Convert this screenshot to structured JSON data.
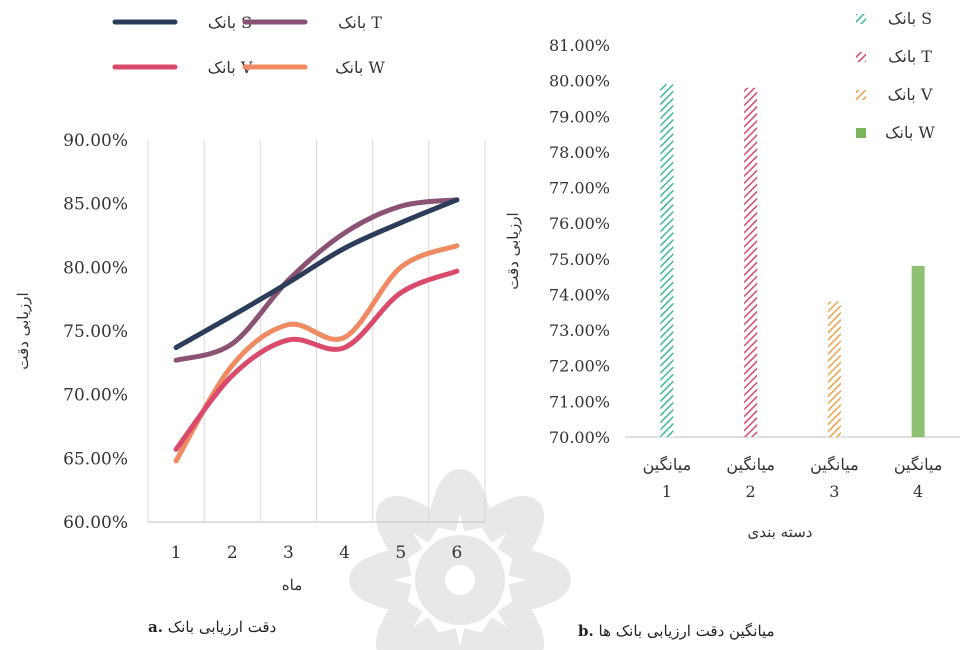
{
  "colors": {
    "bank_s": "#2b3d5a",
    "bank_t": "#8a5373",
    "bank_v": "#d94a6c",
    "bank_w": "#ef8a62",
    "bar1": "#3fb89a",
    "bar2": "#d94a6c",
    "bar3": "#f0a24b",
    "bar4": "#7ab55c",
    "grid": "#d9d9d9",
    "watermark": "#e8e8e8"
  },
  "captions": {
    "a_label": "a.",
    "a_text": "دقت ارزیابی بانک",
    "b_label": "b.",
    "b_text": "میانگین دقت ارزیابی بانک ها"
  },
  "chart_data": [
    {
      "type": "line",
      "xlabel": "ماه",
      "ylabel": "ارزیابی دقت",
      "x": [
        1,
        2,
        3,
        4,
        5,
        6
      ],
      "ylim": [
        0.6,
        0.9
      ],
      "yticks": [
        "60.00%",
        "65.00%",
        "70.00%",
        "75.00%",
        "80.00%",
        "85.00%",
        "90.00%"
      ],
      "xticks": [
        "1",
        "2",
        "3",
        "4",
        "5",
        "6"
      ],
      "grid": "vertical",
      "legend": "top",
      "series": [
        {
          "name": "بانک S",
          "values": [
            0.737,
            0.762,
            0.788,
            0.815,
            0.835,
            0.853
          ]
        },
        {
          "name": "بانک T",
          "values": [
            0.727,
            0.74,
            0.79,
            0.827,
            0.848,
            0.853
          ]
        },
        {
          "name": "بانک V",
          "values": [
            0.657,
            0.715,
            0.743,
            0.737,
            0.78,
            0.797
          ]
        },
        {
          "name": "بانک W",
          "values": [
            0.648,
            0.723,
            0.755,
            0.745,
            0.8,
            0.817
          ]
        }
      ]
    },
    {
      "type": "bar",
      "xlabel": "دسته بندی",
      "ylabel": "ارزیابی دقت",
      "ylim": [
        0.7,
        0.81
      ],
      "yticks": [
        "70.00%",
        "71.00%",
        "72.00%",
        "73.00%",
        "74.00%",
        "75.00%",
        "76.00%",
        "77.00%",
        "78.00%",
        "79.00%",
        "80.00%",
        "81.00%"
      ],
      "categories": [
        {
          "line1": "میانگین",
          "line2": "1"
        },
        {
          "line1": "میانگین",
          "line2": "2"
        },
        {
          "line1": "میانگین",
          "line2": "3"
        },
        {
          "line1": "میانگین",
          "line2": "4"
        }
      ],
      "legend": "top-right",
      "series": [
        {
          "name": "بانک S",
          "values": [
            0.799,
            null,
            null,
            null
          ]
        },
        {
          "name": "بانک T",
          "values": [
            null,
            0.798,
            null,
            null
          ]
        },
        {
          "name": "بانک V",
          "values": [
            null,
            null,
            0.738,
            null
          ]
        },
        {
          "name": "بانک W",
          "values": [
            null,
            null,
            null,
            0.748
          ]
        }
      ]
    }
  ]
}
